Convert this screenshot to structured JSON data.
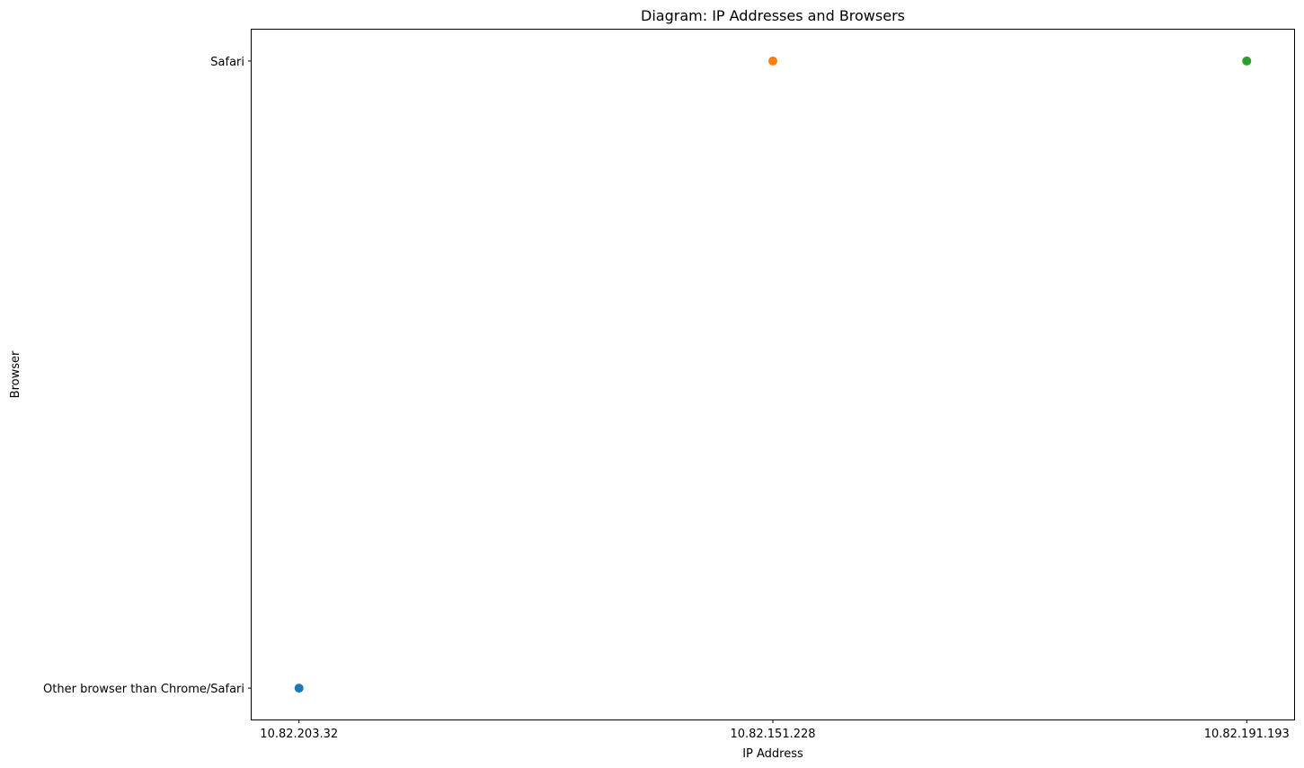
{
  "chart_data": {
    "type": "scatter",
    "title": "Diagram: IP Addresses and Browsers",
    "xlabel": "IP Address",
    "ylabel": "Browser",
    "x_categories": [
      "10.82.203.32",
      "10.82.151.228",
      "10.82.191.193"
    ],
    "y_categories": [
      "Other browser than Chrome/Safari",
      "Safari"
    ],
    "grid": false,
    "series": [
      {
        "x": "10.82.203.32",
        "y": "Other browser than Chrome/Safari",
        "color": "#1f77b4"
      },
      {
        "x": "10.82.151.228",
        "y": "Safari",
        "color": "#ff7f0e"
      },
      {
        "x": "10.82.191.193",
        "y": "Safari",
        "color": "#2ca02c"
      }
    ]
  }
}
